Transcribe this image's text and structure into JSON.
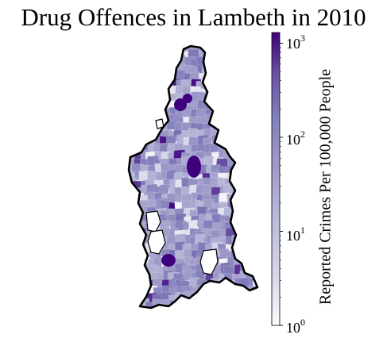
{
  "title": "Drug Offences in Lambeth in 2010",
  "colorbar": {
    "label": "Reported Crimes Per 100,000 People",
    "scale": "log",
    "range": [
      1,
      1300
    ],
    "ticks": [
      {
        "value": 1,
        "base": "10",
        "exp": "0"
      },
      {
        "value": 10,
        "base": "10",
        "exp": "1"
      },
      {
        "value": 100,
        "base": "10",
        "exp": "2"
      },
      {
        "value": 1000,
        "base": "10",
        "exp": "3"
      }
    ],
    "colormap": "Purples",
    "colors": {
      "low": "#fcfbfd",
      "mid": "#9e9ac8",
      "high": "#3f007d"
    }
  },
  "map": {
    "region": "Lambeth",
    "boundary_color": "#000000",
    "fill_level_distribution": "mostly 10–100 with scattered hotspots up to ~1000"
  }
}
